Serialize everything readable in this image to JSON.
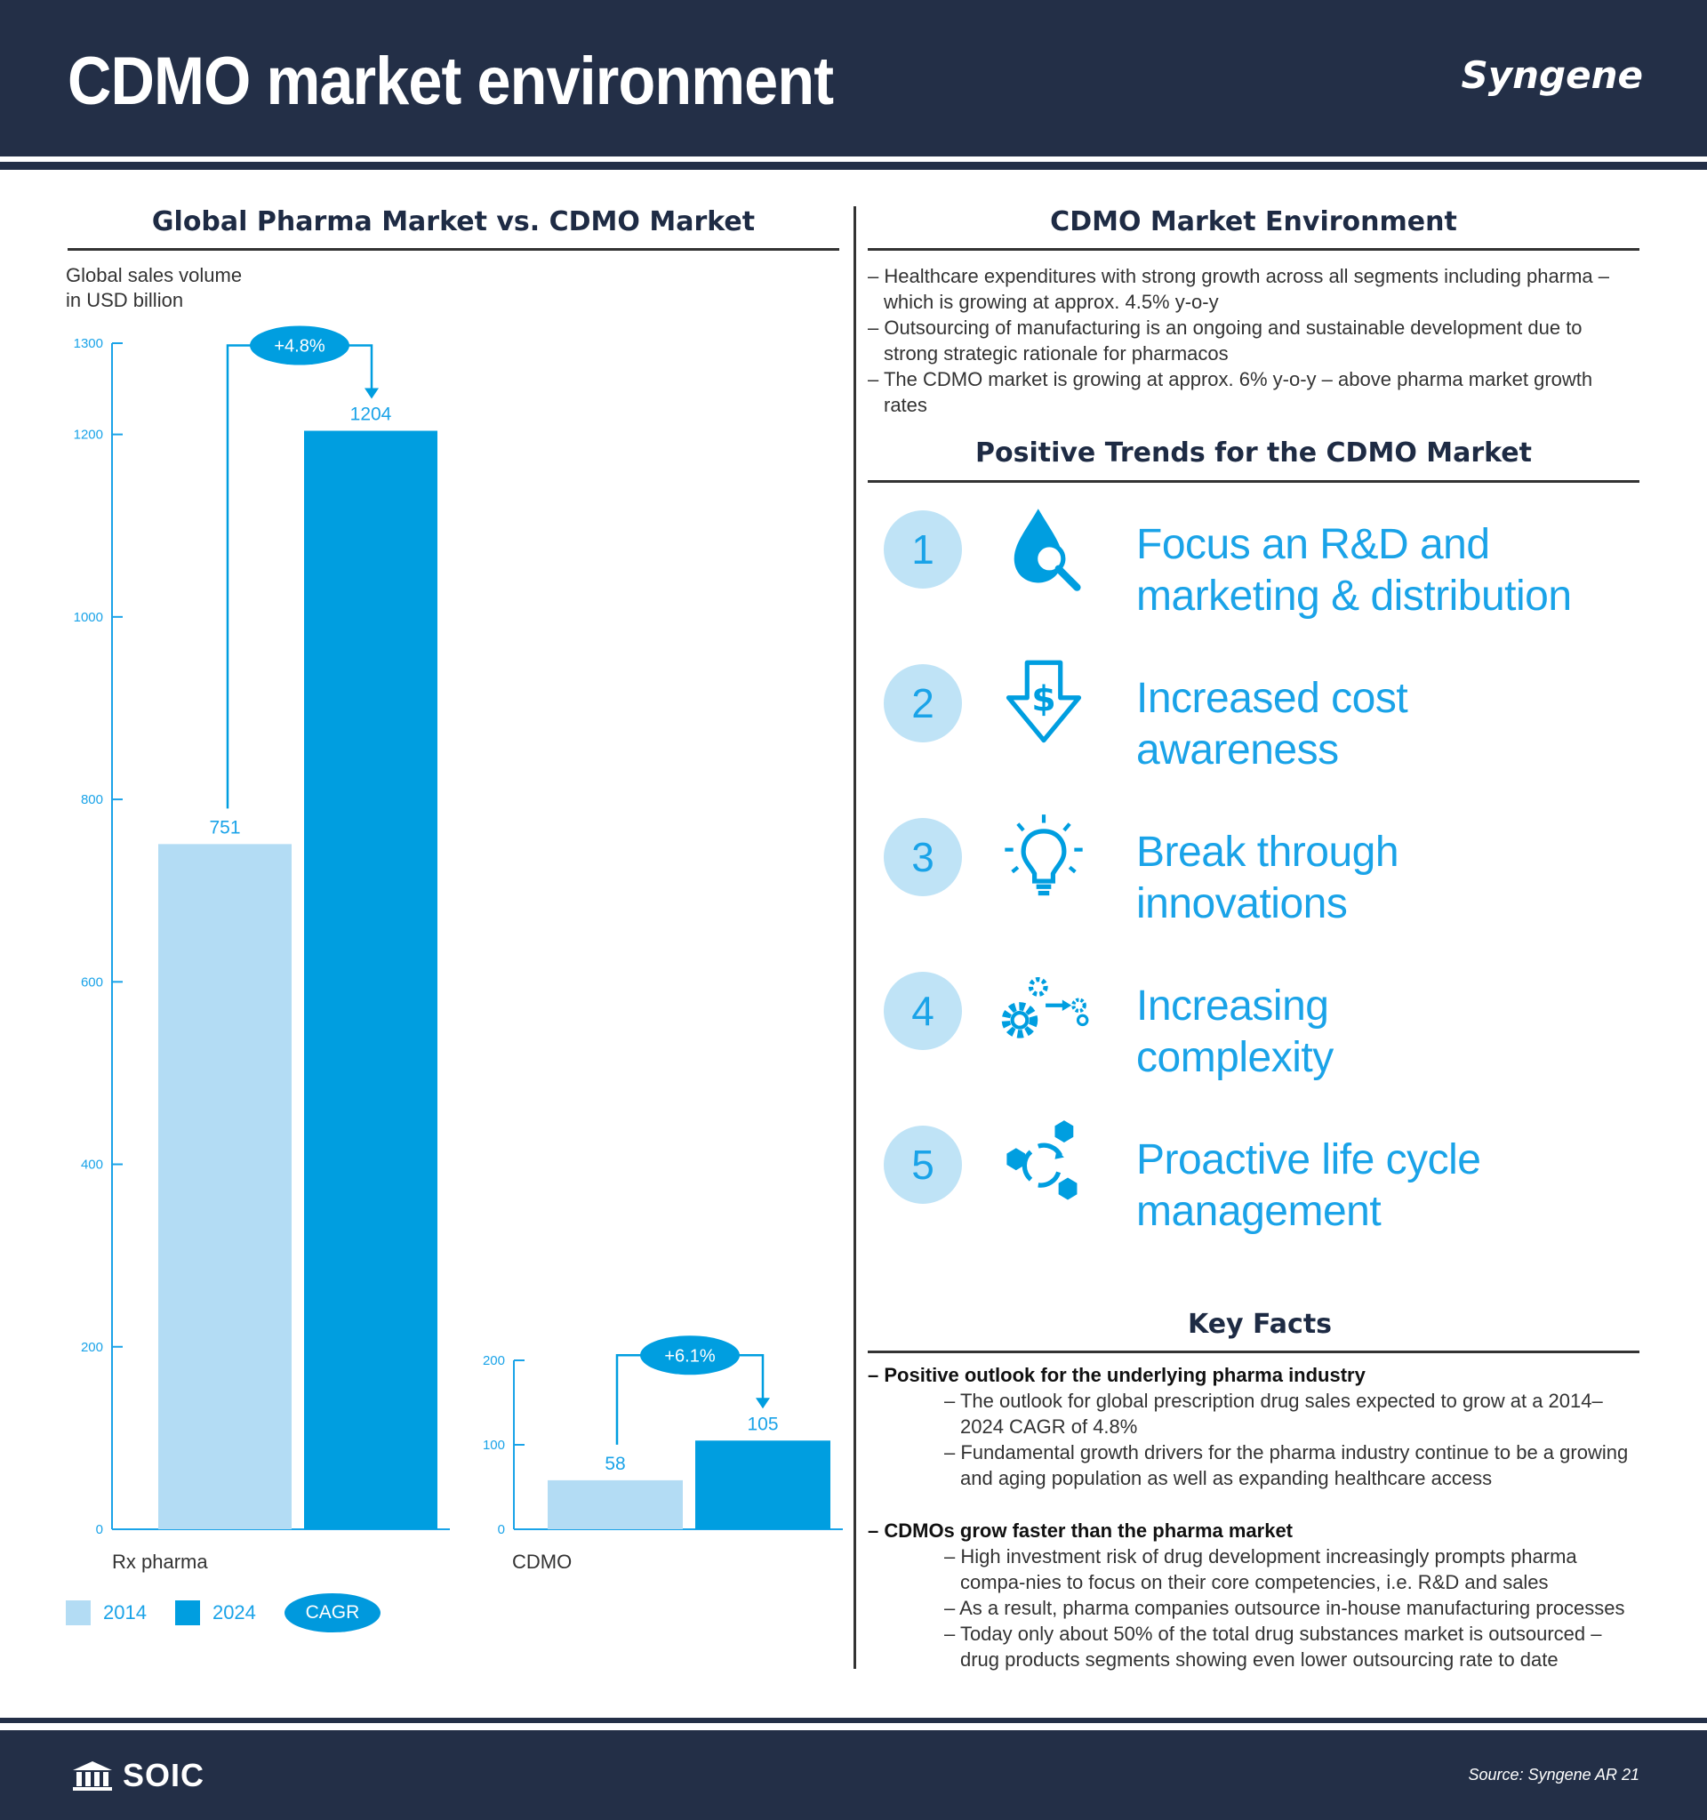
{
  "header": {
    "title": "CDMO market environment",
    "brand": "Syngene"
  },
  "left": {
    "section_title": "Global Pharma Market vs. CDMO Market",
    "ylabel_line1": "Global sales volume",
    "ylabel_line2": "in USD billion"
  },
  "chart_data": [
    {
      "type": "bar",
      "title": "",
      "categories": [
        "Rx pharma"
      ],
      "series": [
        {
          "name": "2014",
          "values": [
            751
          ]
        },
        {
          "name": "2024",
          "values": [
            1204
          ]
        }
      ],
      "ylim": [
        0,
        1300
      ],
      "yticks": [
        0,
        200,
        400,
        600,
        800,
        1000,
        1200,
        1300
      ],
      "cagr": "+4.8%",
      "xlabel": "Rx pharma"
    },
    {
      "type": "bar",
      "title": "",
      "categories": [
        "CDMO"
      ],
      "series": [
        {
          "name": "2014",
          "values": [
            58
          ]
        },
        {
          "name": "2024",
          "values": [
            105
          ]
        }
      ],
      "ylim": [
        0,
        200
      ],
      "yticks": [
        0,
        100,
        200
      ],
      "cagr": "+6.1%",
      "xlabel": "CDMO"
    }
  ],
  "legend": {
    "label_2014": "2014",
    "label_2024": "2024",
    "cagr": "CAGR",
    "color_2014": "#b3dcf4",
    "color_2024": "#009ee0"
  },
  "env": {
    "section_title": "CDMO Market Environment",
    "items": [
      "– Healthcare expenditures with strong growth across all segments including pharma – which is growing at approx. 4.5% y-o-y",
      "– Outsourcing of manufacturing is an ongoing and sustainable development due to strong strategic rationale for pharmacos",
      "– The CDMO market is growing at approx. 6% y-o-y – above pharma market growth rates"
    ]
  },
  "trends": {
    "section_title": "Positive Trends for the CDMO Market",
    "items": [
      {
        "num": "1",
        "line1": "Focus an R&D and",
        "line2": "marketing & distribution",
        "icon": "drop-magnifier-icon"
      },
      {
        "num": "2",
        "line1": "Increased cost",
        "line2": "awareness",
        "icon": "dollar-down-arrow-icon"
      },
      {
        "num": "3",
        "line1": "Break through",
        "line2": "innovations",
        "icon": "lightbulb-icon"
      },
      {
        "num": "4",
        "line1": "Increasing",
        "line2": "complexity",
        "icon": "gears-icon"
      },
      {
        "num": "5",
        "line1": "Proactive life cycle",
        "line2": "management",
        "icon": "cycle-hexagons-icon"
      }
    ]
  },
  "facts": {
    "section_title": "Key Facts",
    "blocks": [
      {
        "head": "– Positive outlook for the underlying pharma industry",
        "subs": [
          "– The outlook for global prescription drug sales expected to grow at a 2014–2024 CAGR of 4.8%",
          "– Fundamental growth drivers for the pharma industry continue to be a growing and aging population as well as expanding healthcare access"
        ]
      },
      {
        "head": "– CDMOs grow faster than the pharma market",
        "subs": [
          "– High investment risk of drug development increasingly prompts pharma compa-nies to focus on their core competencies, i.e. R&D and sales",
          "– As a result, pharma companies outsource in-house manufacturing processes",
          "– Today only about 50% of the total drug substances market is outsourced – drug products segments showing even lower outsourcing rate to date"
        ]
      }
    ]
  },
  "footer": {
    "logo": "SOIC",
    "source": "Source: Syngene AR 21"
  }
}
